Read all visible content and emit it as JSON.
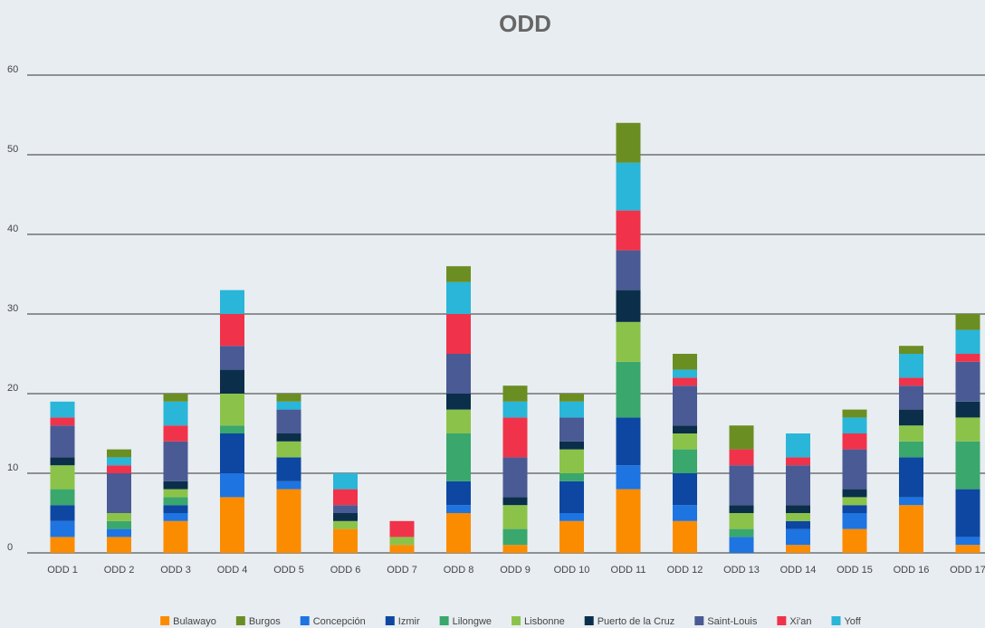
{
  "chart_data": {
    "type": "stacked_bar",
    "title": "ODD",
    "categories": [
      "ODD 1",
      "ODD 2",
      "ODD 3",
      "ODD 4",
      "ODD 5",
      "ODD 6",
      "ODD 7",
      "ODD 8",
      "ODD 9",
      "ODD 10",
      "ODD 11",
      "ODD 12",
      "ODD 13",
      "ODD 14",
      "ODD 15",
      "ODD 16",
      "ODD 17"
    ],
    "series": [
      {
        "name": "Bulawayo",
        "color": "#fb8c00",
        "values": [
          2,
          2,
          4,
          7,
          8,
          3,
          1,
          5,
          1,
          4,
          8,
          4,
          0,
          1,
          3,
          6,
          1
        ]
      },
      {
        "name": "Concepción",
        "color": "#1e74e0",
        "values": [
          2,
          1,
          1,
          3,
          1,
          0,
          0,
          1,
          0,
          1,
          3,
          2,
          2,
          2,
          2,
          1,
          1
        ]
      },
      {
        "name": "Izmir",
        "color": "#0d47a1",
        "values": [
          2,
          0,
          1,
          5,
          3,
          0,
          0,
          3,
          0,
          4,
          6,
          4,
          0,
          1,
          1,
          5,
          6
        ]
      },
      {
        "name": "Lilongwe",
        "color": "#3aa76d",
        "values": [
          2,
          1,
          1,
          1,
          0,
          0,
          0,
          6,
          2,
          1,
          7,
          3,
          1,
          0,
          0,
          2,
          6
        ]
      },
      {
        "name": "Lisbonne",
        "color": "#8bc34a",
        "values": [
          3,
          1,
          1,
          4,
          2,
          1,
          1,
          3,
          3,
          3,
          5,
          2,
          2,
          1,
          1,
          2,
          3
        ]
      },
      {
        "name": "Puerto de la Cruz",
        "color": "#0b2f4a",
        "values": [
          1,
          0,
          1,
          3,
          1,
          1,
          0,
          2,
          1,
          1,
          4,
          1,
          1,
          1,
          1,
          2,
          2
        ]
      },
      {
        "name": "Saint-Louis",
        "color": "#4a5a94",
        "values": [
          4,
          5,
          5,
          3,
          3,
          1,
          0,
          5,
          5,
          3,
          5,
          5,
          5,
          5,
          5,
          3,
          5
        ]
      },
      {
        "name": "Xi'an",
        "color": "#f0334a",
        "values": [
          1,
          1,
          2,
          4,
          0,
          2,
          2,
          5,
          5,
          0,
          5,
          1,
          2,
          1,
          2,
          1,
          1
        ]
      },
      {
        "name": "Yoff",
        "color": "#29b6d9",
        "values": [
          2,
          1,
          3,
          3,
          1,
          2,
          0,
          4,
          2,
          2,
          6,
          1,
          0,
          3,
          2,
          3,
          3
        ]
      },
      {
        "name": "Burgos",
        "color": "#6b8e23",
        "values": [
          0,
          1,
          1,
          0,
          1,
          0,
          0,
          2,
          2,
          1,
          5,
          2,
          3,
          0,
          1,
          1,
          2
        ]
      }
    ],
    "ylim": [
      0,
      60
    ],
    "yticks": [
      0,
      10,
      20,
      30,
      40,
      50,
      60
    ],
    "grid": true
  }
}
